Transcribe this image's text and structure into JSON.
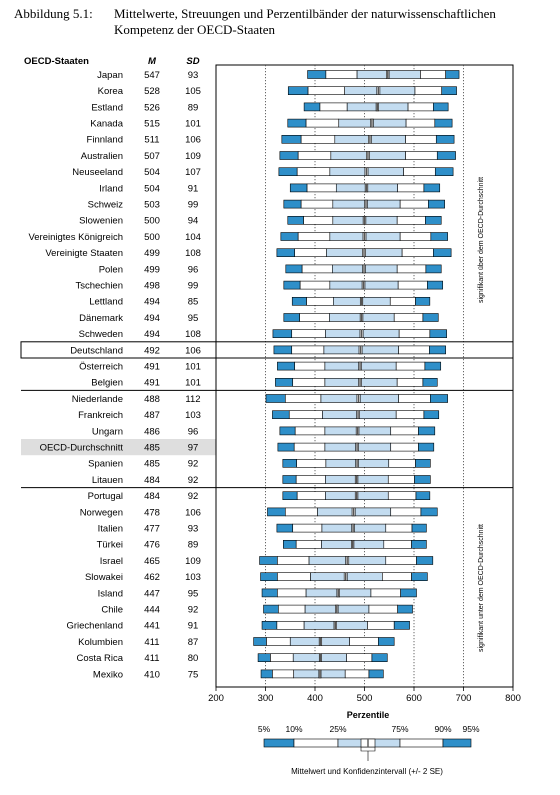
{
  "caption": {
    "label": "Abbildung 5.1:",
    "text": "Mittelwerte, Streuungen und Perzentilbänder der naturwissenschaftlichen Kompetenz der OECD-Staaten"
  },
  "columns": {
    "country": "OECD-Staaten",
    "mean": "M",
    "sd": "SD"
  },
  "side_labels": {
    "above": "signifikant über dem OECD-Durchschnitt",
    "below": "signifikant unter dem OECD-Durchschnitt"
  },
  "legend": {
    "title": "Perzentile",
    "labels": [
      "5%",
      "10%",
      "25%",
      "75%",
      "90%",
      "95%"
    ],
    "note": "Mittelwert und Konfidenzintervall (+/- 2 SE)"
  },
  "colors": {
    "outer": "#2e8fc9",
    "inner": "#c3dcf0",
    "mean": "#555555",
    "highlight": "#dedede"
  },
  "chart_data": {
    "type": "box",
    "xlim": [
      200,
      800
    ],
    "xticks": [
      200,
      300,
      400,
      500,
      600,
      700,
      800
    ],
    "gridlines": [
      300,
      400,
      500,
      600,
      700
    ],
    "highlight_rows": {
      "boxed": "Deutschland",
      "shaded": "OECD-Durchschnitt"
    },
    "rows": [
      {
        "country": "Japan",
        "M": 547,
        "SD": 93,
        "p5": 385,
        "p10": 422,
        "p25": 485,
        "p75": 613,
        "p90": 664,
        "p95": 691
      },
      {
        "country": "Korea",
        "M": 528,
        "SD": 105,
        "p5": 346,
        "p10": 386,
        "p25": 460,
        "p75": 602,
        "p90": 656,
        "p95": 686
      },
      {
        "country": "Estland",
        "M": 526,
        "SD": 89,
        "p5": 378,
        "p10": 410,
        "p25": 465,
        "p75": 588,
        "p90": 639,
        "p95": 669
      },
      {
        "country": "Kanada",
        "M": 515,
        "SD": 101,
        "p5": 345,
        "p10": 382,
        "p25": 448,
        "p75": 584,
        "p90": 642,
        "p95": 677
      },
      {
        "country": "Finnland",
        "M": 511,
        "SD": 106,
        "p5": 333,
        "p10": 372,
        "p25": 440,
        "p75": 583,
        "p90": 645,
        "p95": 681
      },
      {
        "country": "Australien",
        "M": 507,
        "SD": 109,
        "p5": 329,
        "p10": 366,
        "p25": 432,
        "p75": 583,
        "p90": 647,
        "p95": 684
      },
      {
        "country": "Neuseeland",
        "M": 504,
        "SD": 107,
        "p5": 327,
        "p10": 364,
        "p25": 430,
        "p75": 579,
        "p90": 643,
        "p95": 679
      },
      {
        "country": "Irland",
        "M": 504,
        "SD": 91,
        "p5": 350,
        "p10": 384,
        "p25": 443,
        "p75": 567,
        "p90": 620,
        "p95": 652
      },
      {
        "country": "Schweiz",
        "M": 503,
        "SD": 99,
        "p5": 337,
        "p10": 372,
        "p25": 436,
        "p75": 572,
        "p90": 629,
        "p95": 662
      },
      {
        "country": "Slowenien",
        "M": 500,
        "SD": 94,
        "p5": 345,
        "p10": 377,
        "p25": 436,
        "p75": 566,
        "p90": 623,
        "p95": 655
      },
      {
        "country": "Vereinigtes Königreich",
        "M": 500,
        "SD": 104,
        "p5": 331,
        "p10": 366,
        "p25": 430,
        "p75": 572,
        "p90": 634,
        "p95": 668
      },
      {
        "country": "Vereinigte Staaten",
        "M": 499,
        "SD": 108,
        "p5": 323,
        "p10": 359,
        "p25": 423,
        "p75": 576,
        "p90": 639,
        "p95": 675
      },
      {
        "country": "Polen",
        "M": 499,
        "SD": 96,
        "p5": 341,
        "p10": 374,
        "p25": 435,
        "p75": 566,
        "p90": 624,
        "p95": 655
      },
      {
        "country": "Tschechien",
        "M": 498,
        "SD": 99,
        "p5": 337,
        "p10": 370,
        "p25": 430,
        "p75": 568,
        "p90": 627,
        "p95": 658
      },
      {
        "country": "Lettland",
        "M": 494,
        "SD": 85,
        "p5": 354,
        "p10": 383,
        "p25": 437,
        "p75": 552,
        "p90": 603,
        "p95": 632
      },
      {
        "country": "Dänemark",
        "M": 494,
        "SD": 95,
        "p5": 337,
        "p10": 369,
        "p25": 429,
        "p75": 560,
        "p90": 618,
        "p95": 649
      },
      {
        "country": "Schweden",
        "M": 494,
        "SD": 108,
        "p5": 315,
        "p10": 353,
        "p25": 421,
        "p75": 570,
        "p90": 632,
        "p95": 666
      },
      {
        "country": "Deutschland",
        "M": 492,
        "SD": 106,
        "p5": 317,
        "p10": 353,
        "p25": 418,
        "p75": 569,
        "p90": 631,
        "p95": 664
      },
      {
        "country": "Österreich",
        "M": 491,
        "SD": 101,
        "p5": 324,
        "p10": 359,
        "p25": 420,
        "p75": 564,
        "p90": 622,
        "p95": 654
      },
      {
        "country": "Belgien",
        "M": 491,
        "SD": 101,
        "p5": 320,
        "p10": 355,
        "p25": 420,
        "p75": 566,
        "p90": 618,
        "p95": 647
      },
      {
        "country": "Niederlande",
        "M": 488,
        "SD": 112,
        "p5": 301,
        "p10": 340,
        "p25": 412,
        "p75": 569,
        "p90": 633,
        "p95": 668
      },
      {
        "country": "Frankreich",
        "M": 487,
        "SD": 103,
        "p5": 314,
        "p10": 348,
        "p25": 415,
        "p75": 564,
        "p90": 620,
        "p95": 650
      },
      {
        "country": "Ungarn",
        "M": 486,
        "SD": 96,
        "p5": 329,
        "p10": 360,
        "p25": 420,
        "p75": 553,
        "p90": 609,
        "p95": 642
      },
      {
        "country": "OECD-Durchschnitt",
        "M": 485,
        "SD": 97,
        "p5": 325,
        "p10": 358,
        "p25": 420,
        "p75": 553,
        "p90": 609,
        "p95": 640
      },
      {
        "country": "Spanien",
        "M": 485,
        "SD": 92,
        "p5": 335,
        "p10": 363,
        "p25": 422,
        "p75": 549,
        "p90": 603,
        "p95": 633
      },
      {
        "country": "Litauen",
        "M": 484,
        "SD": 92,
        "p5": 335,
        "p10": 362,
        "p25": 421,
        "p75": 548,
        "p90": 601,
        "p95": 633
      },
      {
        "country": "Portugal",
        "M": 484,
        "SD": 92,
        "p5": 335,
        "p10": 364,
        "p25": 421,
        "p75": 548,
        "p90": 604,
        "p95": 632
      },
      {
        "country": "Norwegen",
        "M": 478,
        "SD": 106,
        "p5": 304,
        "p10": 340,
        "p25": 405,
        "p75": 553,
        "p90": 614,
        "p95": 647
      },
      {
        "country": "Italien",
        "M": 477,
        "SD": 93,
        "p5": 323,
        "p10": 355,
        "p25": 414,
        "p75": 543,
        "p90": 596,
        "p95": 625
      },
      {
        "country": "Türkei",
        "M": 476,
        "SD": 89,
        "p5": 336,
        "p10": 362,
        "p25": 413,
        "p75": 539,
        "p90": 595,
        "p95": 625
      },
      {
        "country": "Israel",
        "M": 465,
        "SD": 109,
        "p5": 288,
        "p10": 324,
        "p25": 388,
        "p75": 543,
        "p90": 605,
        "p95": 638
      },
      {
        "country": "Slowakei",
        "M": 462,
        "SD": 103,
        "p5": 290,
        "p10": 324,
        "p25": 391,
        "p75": 536,
        "p90": 595,
        "p95": 627
      },
      {
        "country": "Island",
        "M": 447,
        "SD": 95,
        "p5": 293,
        "p10": 324,
        "p25": 382,
        "p75": 513,
        "p90": 573,
        "p95": 605
      },
      {
        "country": "Chile",
        "M": 444,
        "SD": 92,
        "p5": 296,
        "p10": 326,
        "p25": 380,
        "p75": 509,
        "p90": 567,
        "p95": 597
      },
      {
        "country": "Griechenland",
        "M": 441,
        "SD": 91,
        "p5": 293,
        "p10": 323,
        "p25": 378,
        "p75": 506,
        "p90": 560,
        "p95": 591
      },
      {
        "country": "Kolumbien",
        "M": 411,
        "SD": 87,
        "p5": 276,
        "p10": 302,
        "p25": 350,
        "p75": 470,
        "p90": 528,
        "p95": 560
      },
      {
        "country": "Costa Rica",
        "M": 411,
        "SD": 80,
        "p5": 285,
        "p10": 310,
        "p25": 356,
        "p75": 464,
        "p90": 515,
        "p95": 546
      },
      {
        "country": "Mexiko",
        "M": 410,
        "SD": 75,
        "p5": 291,
        "p10": 314,
        "p25": 357,
        "p75": 461,
        "p90": 509,
        "p95": 538
      }
    ]
  }
}
